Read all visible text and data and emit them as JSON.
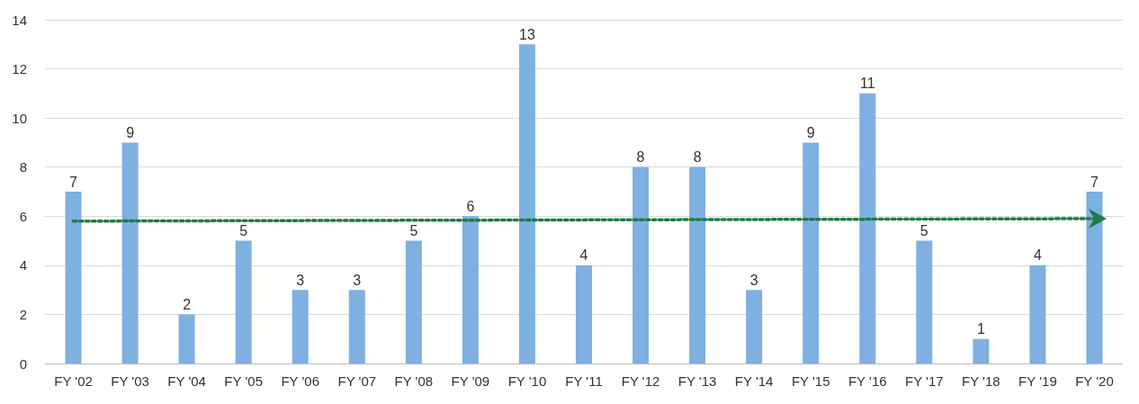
{
  "chart_data": {
    "type": "bar",
    "categories": [
      "FY '02",
      "FY '03",
      "FY '04",
      "FY '05",
      "FY '06",
      "FY '07",
      "FY '08",
      "FY '09",
      "FY '10",
      "FY '11",
      "FY '12",
      "FY '13",
      "FY '14",
      "FY '15",
      "FY '16",
      "FY '17",
      "FY '18",
      "FY '19",
      "FY '20"
    ],
    "series": [
      {
        "color": "#7eb0e2",
        "values": [
          7,
          9,
          2,
          5,
          3,
          3,
          5,
          6,
          13,
          4,
          8,
          8,
          3,
          9,
          11,
          5,
          1,
          4,
          7
        ],
        "data_labels": true
      },
      {
        "type": "line",
        "color": "#1e7b45",
        "line_style": "dotted",
        "x": [
          "FY '02",
          "FY '20"
        ],
        "values": [
          5.8,
          5.9
        ]
      }
    ],
    "ylim": [
      0,
      14
    ],
    "yticks": [
      0,
      2,
      4,
      6,
      8,
      10,
      12,
      14
    ],
    "grid": "y"
  }
}
